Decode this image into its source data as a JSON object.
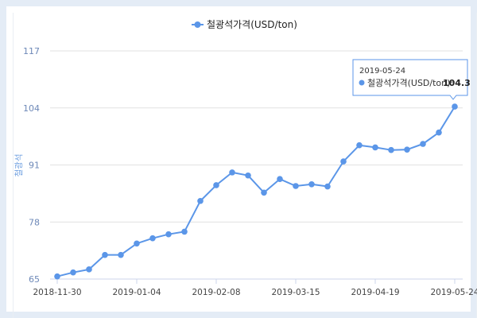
{
  "colors": {
    "series": "#5b96e8",
    "grid": "#e1e1e1",
    "axis": "#ccd6eb",
    "tooltip_border": "#5b96e8"
  },
  "chart_data": {
    "type": "line",
    "title": "",
    "ylabel": "철광석",
    "xlabel": "",
    "ylim": [
      65,
      117
    ],
    "yticks": [
      65,
      78,
      91,
      104,
      117
    ],
    "x": [
      "2018-11-30",
      "2018-12-07",
      "2018-12-14",
      "2018-12-21",
      "2018-12-28",
      "2019-01-04",
      "2019-01-11",
      "2019-01-18",
      "2019-01-25",
      "2019-02-01",
      "2019-02-08",
      "2019-02-15",
      "2019-02-22",
      "2019-03-01",
      "2019-03-08",
      "2019-03-15",
      "2019-03-22",
      "2019-03-29",
      "2019-04-05",
      "2019-04-12",
      "2019-04-19",
      "2019-04-26",
      "2019-05-03",
      "2019-05-10",
      "2019-05-17",
      "2019-05-24"
    ],
    "xtick_labels": [
      "2018-11-30",
      "2019-01-04",
      "2019-02-08",
      "2019-03-15",
      "2019-04-19",
      "2019-05-24"
    ],
    "series": [
      {
        "name": "철광석가격(USD/ton)",
        "values": [
          65.6,
          66.5,
          67.2,
          70.5,
          70.5,
          73.1,
          74.3,
          75.2,
          75.8,
          82.8,
          86.4,
          89.3,
          88.6,
          84.7,
          87.8,
          86.2,
          86.6,
          86.1,
          91.8,
          95.5,
          95.0,
          94.4,
          94.5,
          95.8,
          98.4,
          104.3
        ]
      }
    ],
    "legend_position": "top-center",
    "grid": true,
    "tooltip": {
      "date": "2019-05-24",
      "series": "철광석가격(USD/ton):",
      "value": "104.3"
    }
  }
}
